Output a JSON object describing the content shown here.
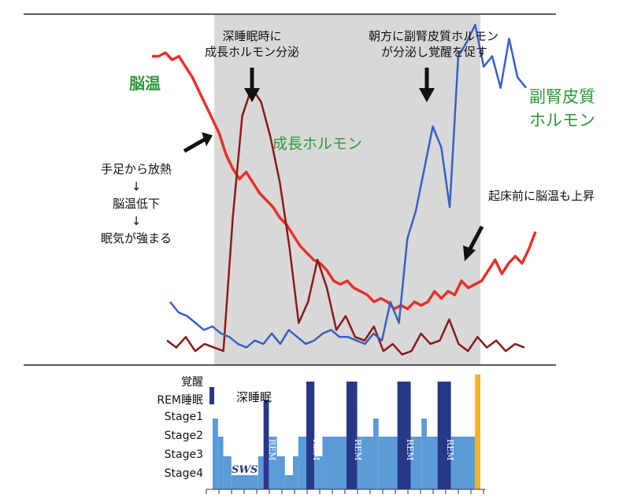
{
  "colors": {
    "brain_temp": "#e8312a",
    "growth_hormone": "#8b1a1a",
    "cortisol": "#3a5fc4",
    "sleep_light": "#5a9bd8",
    "sleep_dark": "#283888",
    "wake": "#f2b324",
    "shade": "#d8d8d8",
    "label_green": "#2e9a3a"
  },
  "annotations": {
    "deep_sleep_gh": [
      "深睡眠時に",
      "成長ホルモン分泌"
    ],
    "morning_cortisol": [
      "朝方に副腎皮質ホルモン",
      "が分泌し覚醒を促す"
    ],
    "heat_release": [
      "手足から放熱",
      "↓",
      "脳温低下",
      "↓",
      "眠気が強まる"
    ],
    "pre_wake_rise": "起床前に脳温も上昇",
    "deep_sleep": "深睡眠",
    "sws": "SWS"
  },
  "series_labels": {
    "brain_temp": "脳温",
    "growth_hormone": "成長ホルモン",
    "cortisol": [
      "副腎皮質",
      "ホルモン"
    ]
  },
  "stage_labels": [
    "覚醒",
    "REM睡眠",
    "Stage1",
    "Stage2",
    "Stage3",
    "Stage4"
  ],
  "rem_label": "REM",
  "chart_data": [
    {
      "type": "line",
      "series": [
        {
          "name": "脳温",
          "values": [
            0.88,
            0.88,
            0.89,
            0.87,
            0.88,
            0.85,
            0.82,
            0.78,
            0.74,
            0.7,
            0.66,
            0.6,
            0.56,
            0.53,
            0.55,
            0.52,
            0.49,
            0.47,
            0.45,
            0.42,
            0.4,
            0.37,
            0.34,
            0.32,
            0.3,
            0.29,
            0.27,
            0.24,
            0.23,
            0.24,
            0.22,
            0.21,
            0.2,
            0.18,
            0.19,
            0.18,
            0.16,
            0.17,
            0.16,
            0.18,
            0.17,
            0.18,
            0.21,
            0.19,
            0.21,
            0.2,
            0.24,
            0.22,
            0.23,
            0.24,
            0.27,
            0.3,
            0.26,
            0.29,
            0.31,
            0.29,
            0.33,
            0.38
          ]
        },
        {
          "name": "成長ホルモン",
          "values": [
            0.07,
            0.05,
            0.08,
            0.04,
            0.06,
            0.05,
            0.04,
            0.42,
            0.71,
            0.79,
            0.75,
            0.65,
            0.52,
            0.34,
            0.12,
            0.18,
            0.3,
            0.22,
            0.1,
            0.14,
            0.08,
            0.07,
            0.11,
            0.04,
            0.06,
            0.03,
            0.04,
            0.09,
            0.06,
            0.07,
            0.13,
            0.06,
            0.04,
            0.08,
            0.05,
            0.07,
            0.04,
            0.06,
            0.05
          ]
        },
        {
          "name": "副腎皮質ホルモン",
          "values": [
            0.18,
            0.15,
            0.14,
            0.12,
            0.1,
            0.11,
            0.09,
            0.08,
            0.06,
            0.05,
            0.07,
            0.06,
            0.09,
            0.06,
            0.1,
            0.08,
            0.06,
            0.07,
            0.09,
            0.1,
            0.08,
            0.08,
            0.07,
            0.06,
            0.09,
            0.07,
            0.18,
            0.12,
            0.36,
            0.44,
            0.56,
            0.68,
            0.62,
            0.45,
            0.88,
            0.92,
            0.97,
            0.85,
            0.88,
            0.79,
            0.93,
            0.82,
            0.79
          ]
        }
      ]
    },
    {
      "type": "bar",
      "levels": [
        "覚醒",
        "REM睡眠",
        "Stage1",
        "Stage2",
        "Stage3",
        "Stage4"
      ],
      "blocks": [
        {
          "stage": "Stage1",
          "start": 0.0,
          "end": 0.02
        },
        {
          "stage": "Stage2",
          "start": 0.02,
          "end": 0.04
        },
        {
          "stage": "Stage3",
          "start": 0.04,
          "end": 0.07
        },
        {
          "stage": "Stage4",
          "start": 0.07,
          "end": 0.17
        },
        {
          "stage": "Stage3",
          "start": 0.17,
          "end": 0.19
        },
        {
          "stage": "REM睡眠",
          "start": 0.19,
          "end": 0.21
        },
        {
          "stage": "Stage2",
          "start": 0.21,
          "end": 0.24
        },
        {
          "stage": "Stage3",
          "start": 0.24,
          "end": 0.27
        },
        {
          "stage": "Stage4",
          "start": 0.27,
          "end": 0.3
        },
        {
          "stage": "Stage3",
          "start": 0.3,
          "end": 0.32
        },
        {
          "stage": "Stage2",
          "start": 0.32,
          "end": 0.35
        },
        {
          "stage": "覚醒",
          "start": 0.35,
          "end": 0.38
        },
        {
          "stage": "Stage3",
          "start": 0.38,
          "end": 0.41
        },
        {
          "stage": "Stage2",
          "start": 0.41,
          "end": 0.5
        },
        {
          "stage": "覚醒",
          "start": 0.5,
          "end": 0.54
        },
        {
          "stage": "Stage2",
          "start": 0.54,
          "end": 0.6
        },
        {
          "stage": "Stage1",
          "start": 0.6,
          "end": 0.62
        },
        {
          "stage": "Stage2",
          "start": 0.62,
          "end": 0.69
        },
        {
          "stage": "覚醒",
          "start": 0.69,
          "end": 0.74
        },
        {
          "stage": "Stage2",
          "start": 0.74,
          "end": 0.78
        },
        {
          "stage": "Stage1",
          "start": 0.78,
          "end": 0.8
        },
        {
          "stage": "Stage2",
          "start": 0.8,
          "end": 0.84
        },
        {
          "stage": "覚醒",
          "start": 0.84,
          "end": 0.89
        },
        {
          "stage": "Stage2",
          "start": 0.89,
          "end": 0.98
        },
        {
          "stage": "覚醒",
          "start": 0.98,
          "end": 1.0
        }
      ]
    }
  ]
}
